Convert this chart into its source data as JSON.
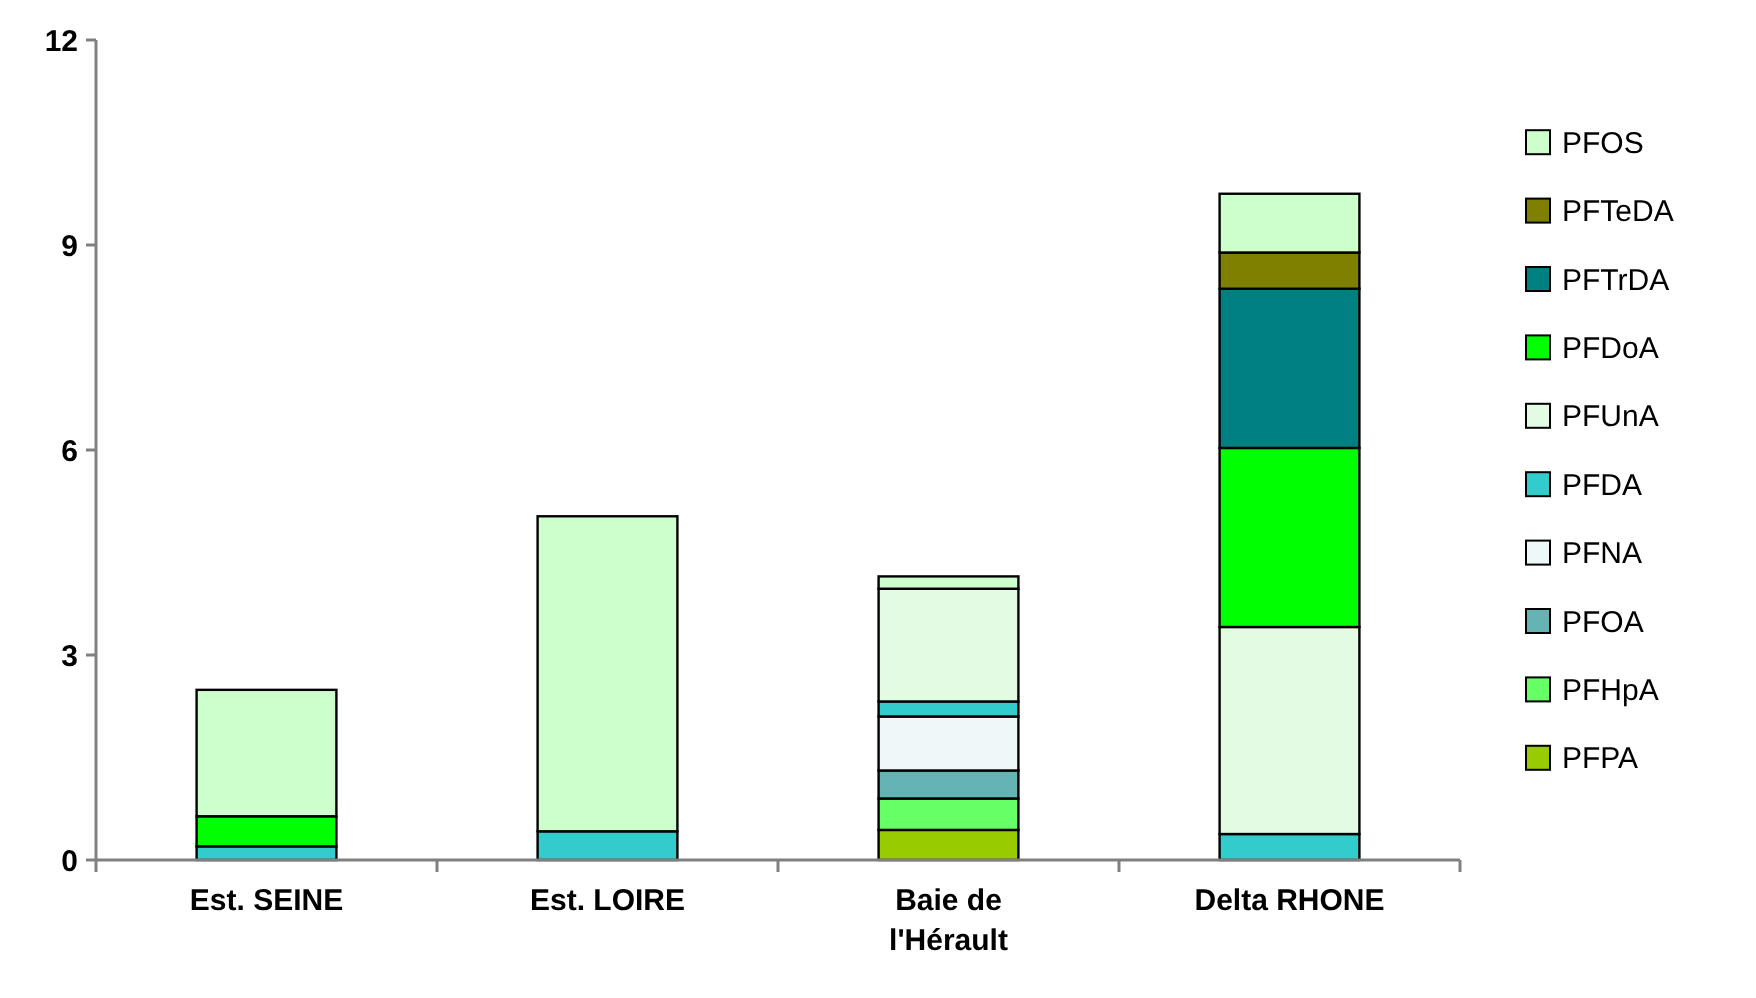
{
  "chart_data": {
    "type": "bar",
    "stacked": true,
    "categories": [
      "Est. SEINE",
      "Est. LOIRE",
      "Baie de l'Hérault",
      "Delta RHONE"
    ],
    "ylim": [
      0,
      12
    ],
    "yticks": [
      0,
      3,
      6,
      9,
      12
    ],
    "grid": false,
    "legend": "right",
    "series": [
      {
        "name": "PFPA",
        "color": "#99cc00",
        "values": [
          null,
          null,
          0.44,
          null
        ]
      },
      {
        "name": "PFHpA",
        "color": "#66ff66",
        "values": [
          null,
          null,
          0.46,
          null
        ]
      },
      {
        "name": "PFOA",
        "color": "#66b3b3",
        "values": [
          null,
          null,
          0.41,
          null
        ]
      },
      {
        "name": "PFNA",
        "color": "#eef8f8",
        "values": [
          null,
          null,
          0.79,
          null
        ]
      },
      {
        "name": "PFDA",
        "color": "#33cccc",
        "values": [
          0.2,
          0.42,
          0.22,
          0.38
        ]
      },
      {
        "name": "PFUnA",
        "color": "#e3fbe3",
        "values": [
          null,
          null,
          1.65,
          3.03
        ]
      },
      {
        "name": "PFDoA",
        "color": "#00ff00",
        "values": [
          0.44,
          null,
          null,
          2.62
        ]
      },
      {
        "name": "PFTrDA",
        "color": "#008080",
        "values": [
          null,
          null,
          null,
          2.33
        ]
      },
      {
        "name": "PFTeDA",
        "color": "#808000",
        "values": [
          null,
          null,
          null,
          0.53
        ]
      },
      {
        "name": "PFOS",
        "color": "#ccffcc",
        "values": [
          1.85,
          4.61,
          0.18,
          0.86
        ]
      }
    ]
  }
}
